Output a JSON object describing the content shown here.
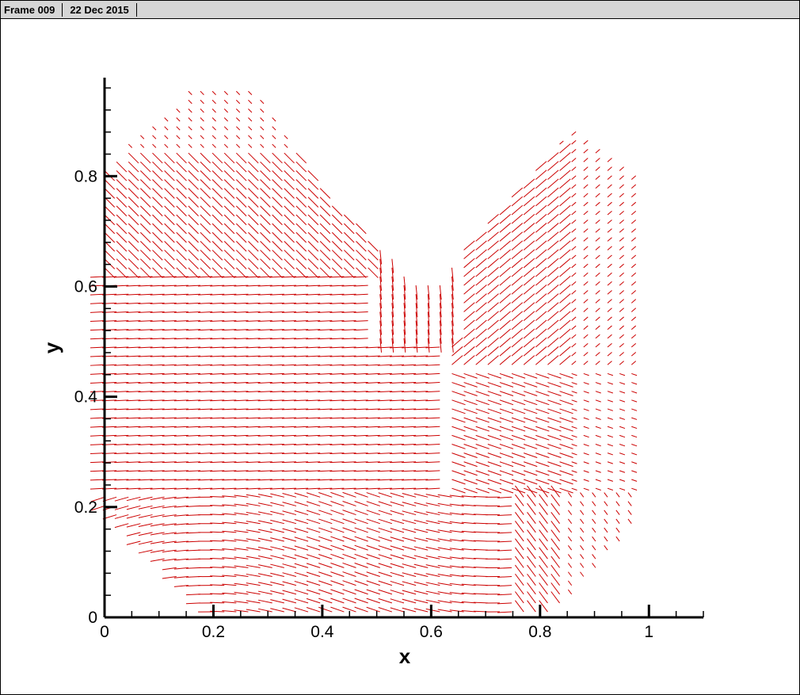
{
  "header": {
    "frame_label": "Frame 009",
    "date_label": "22 Dec 2015"
  },
  "chart_data": {
    "type": "vector",
    "xlabel": "x",
    "ylabel": "y",
    "xlim": [
      0,
      1.1
    ],
    "ylim": [
      0,
      0.97
    ],
    "xticks": [
      {
        "value": 0,
        "label": "0"
      },
      {
        "value": 0.2,
        "label": "0.2"
      },
      {
        "value": 0.4,
        "label": "0.4"
      },
      {
        "value": 0.6,
        "label": "0.6"
      },
      {
        "value": 0.8,
        "label": "0.8"
      },
      {
        "value": 1,
        "label": "1"
      }
    ],
    "yticks": [
      {
        "value": 0,
        "label": "0"
      },
      {
        "value": 0.2,
        "label": "0.2"
      },
      {
        "value": 0.4,
        "label": "0.4"
      },
      {
        "value": 0.6,
        "label": "0.6"
      },
      {
        "value": 0.8,
        "label": "0.8"
      }
    ],
    "x_minor_step": 0.05,
    "y_minor_step": 0.04,
    "vector_color": "#cc0000",
    "domain_polygon": [
      [
        0,
        0.82
      ],
      [
        0.18,
        0.98
      ],
      [
        0.28,
        0.95
      ],
      [
        0.4,
        0.78
      ],
      [
        0.58,
        0.6
      ],
      [
        0.78,
        0.98
      ],
      [
        0.88,
        0.86
      ],
      [
        0.98,
        0.8
      ],
      [
        0.99,
        0.18
      ],
      [
        0.86,
        0.04
      ],
      [
        0.82,
        0
      ],
      [
        0.2,
        0
      ],
      [
        0,
        0.2
      ]
    ],
    "grid": false
  }
}
